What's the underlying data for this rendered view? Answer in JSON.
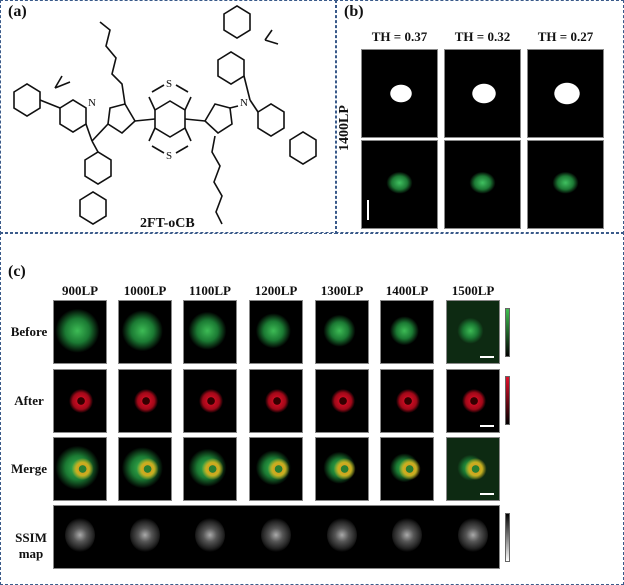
{
  "panel_a": {
    "label": "(a)",
    "compound": "2FT-oCB",
    "atoms": {
      "N": "N",
      "S": "S"
    }
  },
  "panel_b": {
    "label": "(b)",
    "row_label": "1400LP",
    "thresholds": [
      "TH = 0.37",
      "TH = 0.32",
      "TH = 0.27"
    ]
  },
  "panel_c": {
    "label": "(c)",
    "columns": [
      "900LP",
      "1000LP",
      "1100LP",
      "1200LP",
      "1300LP",
      "1400LP",
      "1500LP"
    ],
    "rows": [
      "Before",
      "After",
      "Merge"
    ],
    "ssim_label": [
      "SSIM",
      "map"
    ],
    "colors": {
      "before": "#2fb04a",
      "after": "#e0102a",
      "merge": "#d8c020"
    }
  }
}
